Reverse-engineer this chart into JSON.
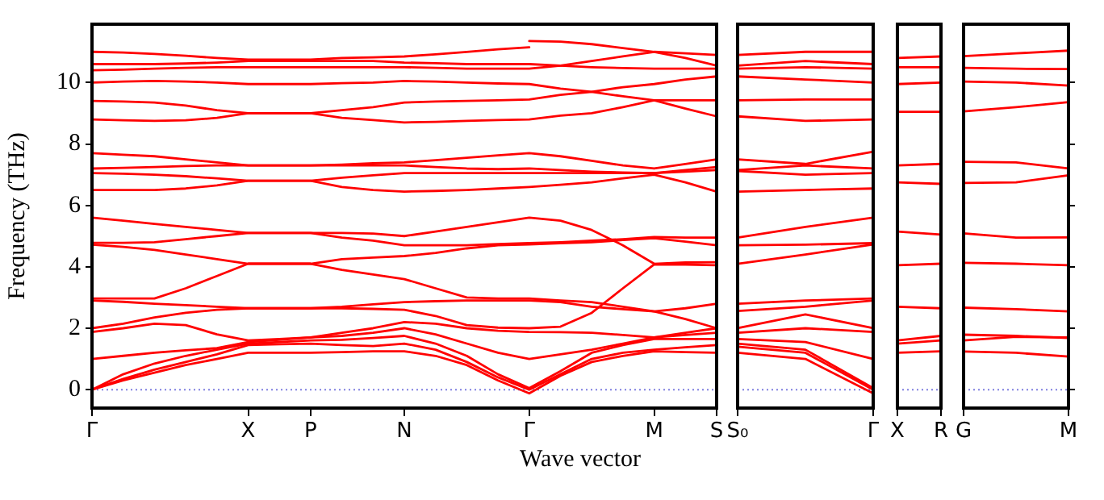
{
  "chart_data": [
    {
      "type": "line",
      "ylabel": "Frequency (THz)",
      "xlabel": "Wave vector",
      "marker": "none",
      "categories": [
        "Γ",
        null,
        null,
        null,
        null,
        "X",
        null,
        "P",
        null,
        null,
        "N",
        null,
        null,
        null,
        "Γ",
        null,
        null,
        null,
        "M",
        null,
        "S"
      ],
      "ylim": [
        -0.6,
        11.9
      ],
      "yticks": [
        0,
        2,
        4,
        6,
        8,
        10
      ],
      "ref_lines": [
        {
          "axis": "y",
          "value": 0,
          "color": "#8080e0",
          "line_style": "dotted"
        }
      ],
      "series": [
        {
          "color": "#ff0000",
          "values": [
            11.0,
            10.98,
            10.93,
            10.87,
            10.8,
            10.75,
            10.75,
            10.75,
            10.8,
            10.82,
            10.85,
            10.92,
            11.0,
            11.08,
            11.15,
            null,
            null,
            null,
            null,
            null,
            null
          ]
        },
        {
          "color": "#ff0000",
          "values": [
            null,
            null,
            null,
            null,
            null,
            null,
            null,
            null,
            null,
            null,
            null,
            null,
            null,
            null,
            11.35,
            11.33,
            11.25,
            11.12,
            11.0,
            10.95,
            10.9
          ]
        },
        {
          "color": "#ff0000",
          "values": [
            10.6,
            10.6,
            10.6,
            10.62,
            10.65,
            10.7,
            10.7,
            10.7,
            10.7,
            10.7,
            10.65,
            10.63,
            10.6,
            10.6,
            10.6,
            10.55,
            10.5,
            10.47,
            10.45,
            10.45,
            10.45
          ]
        },
        {
          "color": "#ff0000",
          "values": [
            10.4,
            10.42,
            10.45,
            10.48,
            10.5,
            10.5,
            10.5,
            10.5,
            10.5,
            10.5,
            10.5,
            10.48,
            10.45,
            10.45,
            10.45,
            10.55,
            10.7,
            10.85,
            11.0,
            10.8,
            10.55
          ]
        },
        {
          "color": "#ff0000",
          "values": [
            10.0,
            10.03,
            10.05,
            10.03,
            10.0,
            9.95,
            9.95,
            9.95,
            9.98,
            10.0,
            10.05,
            10.03,
            10.0,
            9.97,
            9.95,
            9.8,
            9.7,
            9.55,
            9.42,
            9.15,
            8.9
          ]
        },
        {
          "color": "#ff0000",
          "values": [
            9.4,
            9.38,
            9.35,
            9.25,
            9.1,
            9.0,
            9.0,
            9.0,
            9.1,
            9.2,
            9.35,
            9.38,
            9.4,
            9.42,
            9.45,
            9.6,
            9.7,
            9.85,
            9.95,
            10.1,
            10.2
          ]
        },
        {
          "color": "#ff0000",
          "values": [
            8.8,
            8.77,
            8.75,
            8.77,
            8.85,
            9.0,
            9.0,
            9.0,
            8.85,
            8.78,
            8.7,
            8.72,
            8.75,
            8.78,
            8.8,
            8.92,
            9.0,
            9.2,
            9.42,
            9.42,
            9.42
          ]
        },
        {
          "color": "#ff0000",
          "values": [
            7.7,
            7.65,
            7.6,
            7.5,
            7.4,
            7.3,
            7.3,
            7.3,
            7.33,
            7.37,
            7.4,
            7.47,
            7.55,
            7.63,
            7.7,
            7.6,
            7.45,
            7.3,
            7.2,
            7.35,
            7.5
          ]
        },
        {
          "color": "#ff0000",
          "values": [
            7.2,
            7.22,
            7.25,
            7.28,
            7.3,
            7.3,
            7.3,
            7.3,
            7.3,
            7.3,
            7.3,
            7.25,
            7.2,
            7.18,
            7.2,
            7.15,
            7.1,
            7.07,
            7.05,
            7.15,
            7.25
          ]
        },
        {
          "color": "#ff0000",
          "values": [
            7.05,
            7.03,
            7.0,
            6.95,
            6.88,
            6.8,
            6.8,
            6.8,
            6.9,
            6.98,
            7.05,
            7.05,
            7.05,
            7.05,
            7.05,
            7.05,
            7.05,
            7.05,
            7.05,
            7.1,
            7.15
          ]
        },
        {
          "color": "#ff0000",
          "values": [
            6.5,
            6.5,
            6.5,
            6.55,
            6.65,
            6.8,
            6.8,
            6.8,
            6.6,
            6.5,
            6.45,
            6.47,
            6.5,
            6.55,
            6.6,
            6.67,
            6.75,
            6.88,
            7.0,
            6.75,
            6.45
          ]
        },
        {
          "color": "#ff0000",
          "values": [
            5.6,
            5.5,
            5.4,
            5.3,
            5.2,
            5.1,
            5.1,
            5.1,
            5.1,
            5.08,
            5.0,
            5.15,
            5.3,
            5.45,
            5.6,
            5.5,
            5.2,
            4.7,
            4.1,
            4.14,
            4.15
          ]
        },
        {
          "color": "#ff0000",
          "values": [
            4.78,
            4.78,
            4.8,
            4.9,
            5.0,
            5.1,
            5.1,
            5.1,
            4.95,
            4.85,
            4.7,
            4.7,
            4.7,
            4.74,
            4.77,
            4.8,
            4.85,
            4.9,
            4.97,
            4.95,
            4.95
          ]
        },
        {
          "color": "#ff0000",
          "values": [
            4.72,
            4.65,
            4.55,
            4.4,
            4.25,
            4.1,
            4.1,
            4.1,
            4.25,
            4.3,
            4.35,
            4.45,
            4.6,
            4.7,
            4.73,
            4.77,
            4.8,
            4.87,
            4.93,
            4.82,
            4.7
          ]
        },
        {
          "color": "#ff0000",
          "values": [
            2.97,
            2.97,
            2.97,
            3.3,
            3.7,
            4.1,
            4.1,
            4.1,
            3.9,
            3.75,
            3.6,
            3.3,
            3.0,
            2.97,
            2.97,
            2.9,
            2.85,
            2.7,
            2.55,
            2.65,
            2.8
          ]
        },
        {
          "color": "#ff0000",
          "values": [
            2.9,
            2.86,
            2.8,
            2.75,
            2.7,
            2.65,
            2.65,
            2.65,
            2.7,
            2.78,
            2.85,
            2.88,
            2.9,
            2.9,
            2.9,
            2.85,
            2.7,
            2.62,
            2.55,
            2.3,
            2.0
          ]
        },
        {
          "color": "#ff0000",
          "values": [
            2.0,
            2.15,
            2.35,
            2.5,
            2.6,
            2.65,
            2.65,
            2.65,
            2.65,
            2.63,
            2.6,
            2.4,
            2.1,
            2.02,
            2.0,
            2.05,
            2.5,
            3.3,
            4.08,
            4.07,
            4.05
          ]
        },
        {
          "color": "#ff0000",
          "values": [
            1.88,
            2.0,
            2.15,
            2.1,
            1.8,
            1.6,
            1.65,
            1.7,
            1.85,
            2.0,
            2.2,
            2.15,
            2.0,
            1.92,
            1.88,
            1.87,
            1.85,
            1.78,
            1.7,
            1.78,
            1.85
          ]
        },
        {
          "color": "#ff0000",
          "values": [
            1.0,
            1.1,
            1.2,
            1.28,
            1.35,
            1.55,
            1.62,
            1.7,
            1.75,
            1.85,
            2.0,
            1.8,
            1.5,
            1.2,
            1.0,
            1.15,
            1.3,
            1.5,
            1.7,
            1.85,
            2.0
          ]
        },
        {
          "color": "#ff0000",
          "values": [
            0,
            0.5,
            0.85,
            1.1,
            1.3,
            1.5,
            1.55,
            1.6,
            1.62,
            1.68,
            1.75,
            1.5,
            1.1,
            0.5,
            0.05,
            0.6,
            1.2,
            1.45,
            1.65,
            1.65,
            1.65
          ]
        },
        {
          "color": "#ff0000",
          "values": [
            0,
            0.35,
            0.65,
            0.9,
            1.15,
            1.45,
            1.48,
            1.5,
            1.45,
            1.42,
            1.5,
            1.3,
            0.9,
            0.4,
            0,
            0.5,
            1.0,
            1.2,
            1.3,
            1.38,
            1.45
          ]
        },
        {
          "color": "#ff0000",
          "values": [
            0,
            0.3,
            0.55,
            0.8,
            1.0,
            1.2,
            1.2,
            1.2,
            1.22,
            1.25,
            1.25,
            1.1,
            0.8,
            0.3,
            -0.12,
            0.45,
            0.9,
            1.1,
            1.25,
            1.22,
            1.2
          ]
        }
      ]
    },
    {
      "type": "line",
      "marker": "none",
      "tick_labels": "x",
      "categories": [
        "S₀",
        null,
        "Γ"
      ],
      "ylim": [
        -0.6,
        11.9
      ],
      "ref_lines": [
        {
          "axis": "y",
          "value": 0,
          "color": "#8080e0",
          "line_style": "dotted"
        }
      ],
      "series": [
        {
          "color": "#ff0000",
          "values": [
            10.9,
            11.0,
            11.0
          ]
        },
        {
          "color": "#ff0000",
          "values": [
            10.55,
            10.7,
            10.6
          ]
        },
        {
          "color": "#ff0000",
          "values": [
            10.45,
            10.5,
            10.45
          ]
        },
        {
          "color": "#ff0000",
          "values": [
            10.2,
            10.1,
            10.0
          ]
        },
        {
          "color": "#ff0000",
          "values": [
            9.42,
            9.45,
            9.45
          ]
        },
        {
          "color": "#ff0000",
          "values": [
            8.9,
            8.75,
            8.8
          ]
        },
        {
          "color": "#ff0000",
          "values": [
            7.5,
            7.35,
            7.75
          ]
        },
        {
          "color": "#ff0000",
          "values": [
            7.15,
            7.3,
            7.2
          ]
        },
        {
          "color": "#ff0000",
          "values": [
            7.12,
            7.0,
            7.05
          ]
        },
        {
          "color": "#ff0000",
          "values": [
            6.45,
            6.5,
            6.55
          ]
        },
        {
          "color": "#ff0000",
          "values": [
            4.95,
            5.3,
            5.6
          ]
        },
        {
          "color": "#ff0000",
          "values": [
            4.7,
            4.72,
            4.77
          ]
        },
        {
          "color": "#ff0000",
          "values": [
            4.1,
            4.4,
            4.73
          ]
        },
        {
          "color": "#ff0000",
          "values": [
            2.8,
            2.9,
            2.97
          ]
        },
        {
          "color": "#ff0000",
          "values": [
            2.56,
            2.7,
            2.9
          ]
        },
        {
          "color": "#ff0000",
          "values": [
            2.0,
            2.45,
            2.0
          ]
        },
        {
          "color": "#ff0000",
          "values": [
            1.85,
            2.0,
            1.88
          ]
        },
        {
          "color": "#ff0000",
          "values": [
            1.65,
            1.55,
            1.0
          ]
        },
        {
          "color": "#ff0000",
          "values": [
            1.5,
            1.3,
            0.05
          ]
        },
        {
          "color": "#ff0000",
          "values": [
            1.4,
            1.2,
            0
          ]
        },
        {
          "color": "#ff0000",
          "values": [
            1.2,
            1.0,
            -0.12
          ]
        }
      ]
    },
    {
      "type": "line",
      "marker": "none",
      "tick_labels": "x",
      "categories": [
        "X",
        "R"
      ],
      "ylim": [
        -0.6,
        11.9
      ],
      "ref_lines": [
        {
          "axis": "y",
          "value": 0,
          "color": "#8080e0",
          "line_style": "dotted"
        }
      ],
      "series": [
        {
          "color": "#ff0000",
          "values": [
            10.8,
            10.85
          ]
        },
        {
          "color": "#ff0000",
          "values": [
            10.5,
            10.5
          ]
        },
        {
          "color": "#ff0000",
          "values": [
            9.95,
            10.0
          ]
        },
        {
          "color": "#ff0000",
          "values": [
            9.05,
            9.05
          ]
        },
        {
          "color": "#ff0000",
          "values": [
            7.3,
            7.35
          ]
        },
        {
          "color": "#ff0000",
          "values": [
            6.75,
            6.7
          ]
        },
        {
          "color": "#ff0000",
          "values": [
            5.15,
            5.05
          ]
        },
        {
          "color": "#ff0000",
          "values": [
            4.05,
            4.1
          ]
        },
        {
          "color": "#ff0000",
          "values": [
            2.7,
            2.65
          ]
        },
        {
          "color": "#ff0000",
          "values": [
            1.6,
            1.75
          ]
        },
        {
          "color": "#ff0000",
          "values": [
            1.5,
            1.6
          ]
        },
        {
          "color": "#ff0000",
          "values": [
            1.2,
            1.25
          ]
        }
      ]
    },
    {
      "type": "line",
      "marker": "none",
      "tick_labels": "x",
      "categories": [
        "G",
        null,
        "M"
      ],
      "ylim": [
        -0.6,
        11.9
      ],
      "yticks": [
        0,
        2,
        4,
        6,
        8,
        10
      ],
      "ref_lines": [
        {
          "axis": "y",
          "value": 0,
          "color": "#8080e0",
          "line_style": "dotted"
        }
      ],
      "series": [
        {
          "color": "#ff0000",
          "values": [
            10.86,
            10.95,
            11.04
          ]
        },
        {
          "color": "#ff0000",
          "values": [
            10.48,
            10.45,
            10.44
          ]
        },
        {
          "color": "#ff0000",
          "values": [
            10.03,
            10.0,
            9.9
          ]
        },
        {
          "color": "#ff0000",
          "values": [
            9.06,
            9.2,
            9.36
          ]
        },
        {
          "color": "#ff0000",
          "values": [
            7.42,
            7.4,
            7.2
          ]
        },
        {
          "color": "#ff0000",
          "values": [
            6.73,
            6.75,
            6.98
          ]
        },
        {
          "color": "#ff0000",
          "values": [
            5.09,
            4.95,
            4.96
          ]
        },
        {
          "color": "#ff0000",
          "values": [
            4.13,
            4.1,
            4.05
          ]
        },
        {
          "color": "#ff0000",
          "values": [
            2.67,
            2.62,
            2.55
          ]
        },
        {
          "color": "#ff0000",
          "values": [
            1.79,
            1.75,
            1.68
          ]
        },
        {
          "color": "#ff0000",
          "values": [
            1.6,
            1.72,
            1.7
          ]
        },
        {
          "color": "#ff0000",
          "values": [
            1.24,
            1.2,
            1.08
          ]
        }
      ]
    }
  ]
}
